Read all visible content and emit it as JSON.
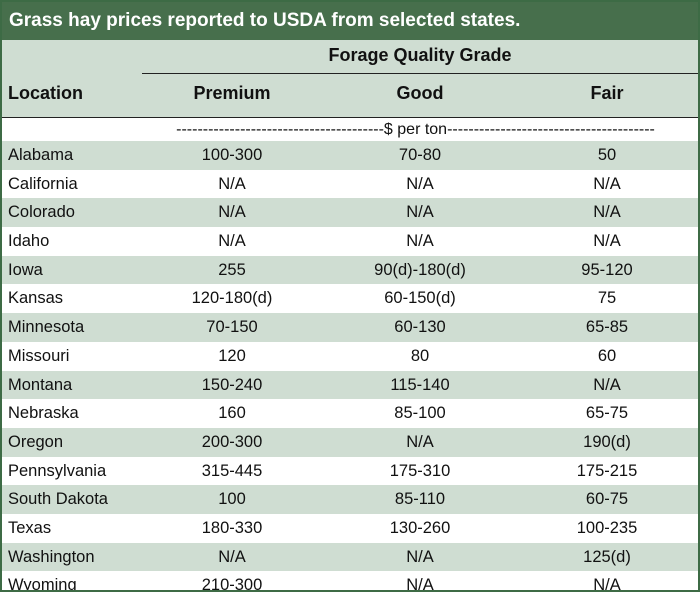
{
  "title": "Grass hay prices reported to USDA from selected states.",
  "group_header": "Forage Quality Grade",
  "columns": {
    "location": "Location",
    "premium": "Premium",
    "good": "Good",
    "fair": "Fair"
  },
  "units": "---------------------------------------$ per ton---------------------------------------",
  "rows": [
    {
      "location": "Alabama",
      "premium": "100-300",
      "good": "70-80",
      "fair": "50"
    },
    {
      "location": "California",
      "premium": "N/A",
      "good": "N/A",
      "fair": "N/A"
    },
    {
      "location": "Colorado",
      "premium": "N/A",
      "good": "N/A",
      "fair": "N/A"
    },
    {
      "location": "Idaho",
      "premium": "N/A",
      "good": "N/A",
      "fair": "N/A"
    },
    {
      "location": "Iowa",
      "premium": "255",
      "good": "90(d)-180(d)",
      "fair": "95-120"
    },
    {
      "location": "Kansas",
      "premium": "120-180(d)",
      "good": "60-150(d)",
      "fair": "75"
    },
    {
      "location": "Minnesota",
      "premium": "70-150",
      "good": "60-130",
      "fair": "65-85"
    },
    {
      "location": "Missouri",
      "premium": "120",
      "good": "80",
      "fair": "60"
    },
    {
      "location": "Montana",
      "premium": "150-240",
      "good": "115-140",
      "fair": "N/A"
    },
    {
      "location": "Nebraska",
      "premium": "160",
      "good": "85-100",
      "fair": "65-75"
    },
    {
      "location": "Oregon",
      "premium": "200-300",
      "good": "N/A",
      "fair": "190(d)"
    },
    {
      "location": "Pennsylvania",
      "premium": "315-445",
      "good": "175-310",
      "fair": "175-215"
    },
    {
      "location": "South Dakota",
      "premium": "100",
      "good": "85-110",
      "fair": "60-75"
    },
    {
      "location": "Texas",
      "premium": "180-330",
      "good": "130-260",
      "fair": "100-235"
    },
    {
      "location": "Washington",
      "premium": "N/A",
      "good": "N/A",
      "fair": "125(d)"
    },
    {
      "location": "Wyoming",
      "premium": "210-300",
      "good": "N/A",
      "fair": "N/A"
    }
  ],
  "colors": {
    "title_bar": "#476f4c",
    "shade_row": "#cfddd2",
    "border": "#3d6b45"
  }
}
